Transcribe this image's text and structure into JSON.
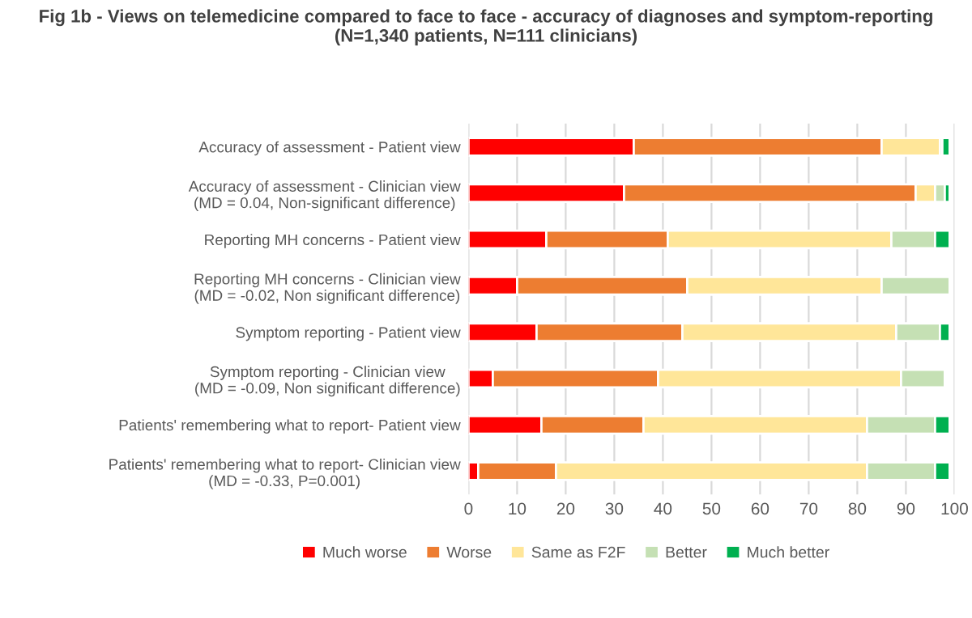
{
  "chart_data": {
    "type": "bar",
    "orientation": "horizontal",
    "stacked": true,
    "title": "Fig 1b - Views on telemedicine compared to face to face - accuracy of diagnoses and symptom-reporting\n(N=1,340 patients, N=111 clinicians)",
    "categories": [
      "Accuracy of assessment - Patient view",
      "Accuracy of assessment - Clinician view\n(MD = 0.04, Non-significant difference)",
      "Reporting MH concerns - Patient view",
      "Reporting MH concerns - Clinician view\n(MD = -0.02, Non significant difference)",
      "Symptom reporting - Patient view",
      "Symptom reporting - Clinician view\n(MD = -0.09, Non significant difference)",
      "Patients' remembering what to report- Patient view",
      "Patients' remembering what to report- Clinician view\n(MD = -0.33, P=0.001)"
    ],
    "series": [
      {
        "name": "Much worse",
        "color": "#ff0000",
        "values": [
          34,
          32,
          16,
          10,
          14,
          5,
          15,
          2
        ]
      },
      {
        "name": "Worse",
        "color": "#ed7d31",
        "values": [
          51,
          60,
          25,
          35,
          30,
          34,
          21,
          16
        ]
      },
      {
        "name": "Same as F2F",
        "color": "#ffe699",
        "values": [
          12,
          4,
          46,
          40,
          44,
          50,
          46,
          64
        ]
      },
      {
        "name": "Better",
        "color": "#c5e0b4",
        "values": [
          0.5,
          2,
          9,
          14,
          9,
          9,
          14,
          14
        ]
      },
      {
        "name": "Much better",
        "color": "#00b050",
        "values": [
          1.5,
          1,
          3,
          null,
          2,
          null,
          3,
          3
        ]
      }
    ],
    "xlim": [
      0,
      100
    ],
    "xticks": [
      0,
      10,
      20,
      30,
      40,
      50,
      60,
      70,
      80,
      90,
      100
    ],
    "grid": "x",
    "legend": "bottom"
  }
}
